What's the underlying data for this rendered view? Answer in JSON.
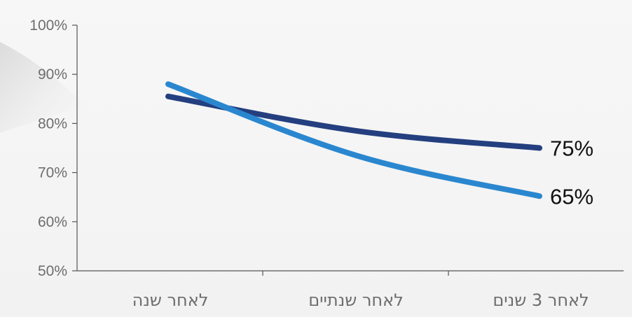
{
  "chart_data": {
    "type": "line",
    "title": "",
    "xlabel": "",
    "ylabel": "",
    "categories": [
      "לאחר שנה",
      "לאחר שנתיים",
      "לאחר 3 שנים"
    ],
    "x_direction": "right-to-left",
    "ylim": [
      50,
      100
    ],
    "yticks": [
      50,
      60,
      70,
      80,
      90,
      100
    ],
    "ytick_labels": [
      "50%",
      "60%",
      "70%",
      "80%",
      "90%",
      "100%"
    ],
    "grid": false,
    "legend": "none",
    "series": [
      {
        "values": [
          85.5,
          78.5,
          75
        ],
        "color": "#243f7f",
        "end_label": "75%"
      },
      {
        "values": [
          88,
          73.5,
          65.2
        ],
        "color": "#2a87cf",
        "end_label": "65%"
      }
    ]
  }
}
